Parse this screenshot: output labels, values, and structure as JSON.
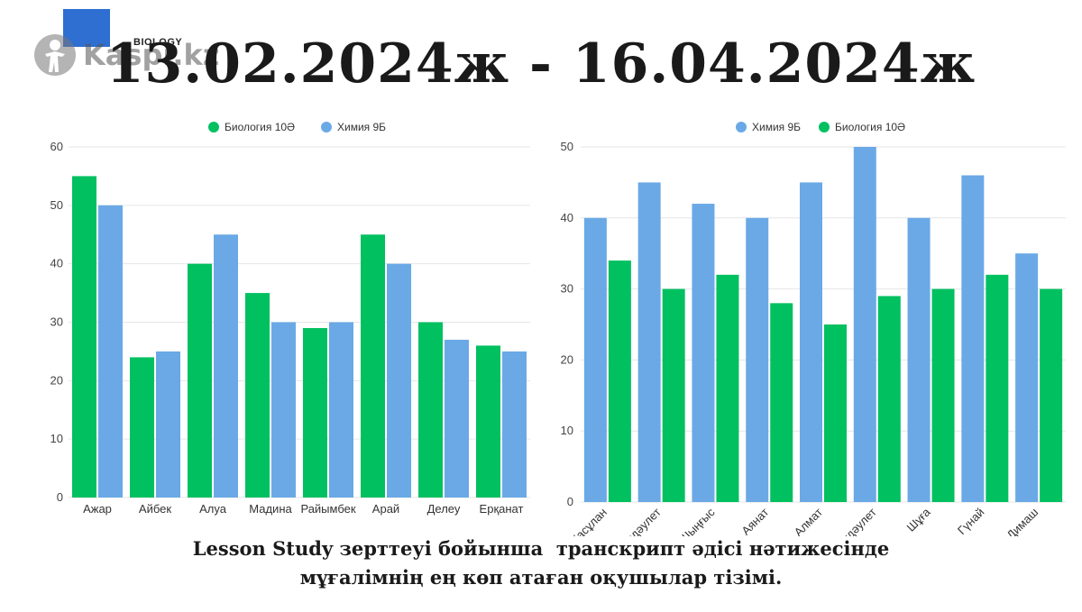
{
  "brand": {
    "subject_tag": "BIOLOGY",
    "watermark": "Kaspi.kz",
    "colors": {
      "logo_blue": "#2f6fd1"
    }
  },
  "headline": "13.02.2024ж - 16.04.2024ж",
  "caption": {
    "line1": "Lesson Study зерттеуі бойынша  транскрипт әдісі нәтижесінде",
    "line2": "мұғалімнің ең көп атаған оқушылар тізімі."
  },
  "chart_data": [
    {
      "type": "bar",
      "legend_position": "top",
      "grid": true,
      "ylim": [
        0,
        60
      ],
      "yticks": [
        0,
        10,
        20,
        30,
        40,
        50,
        60
      ],
      "categories": [
        "Ажар",
        "Айбек",
        "Алуа",
        "Мадина",
        "Райымбек",
        "Арай",
        "Делеу",
        "Ерқанат"
      ],
      "series": [
        {
          "name": "Биология 10Ә",
          "color": "#00c060",
          "values": [
            55,
            24,
            40,
            35,
            29,
            45,
            30,
            26
          ]
        },
        {
          "name": "Химия 9Б",
          "color": "#6aa9e6",
          "values": [
            50,
            25,
            45,
            30,
            30,
            40,
            27,
            25
          ]
        }
      ]
    },
    {
      "type": "bar",
      "legend_position": "top",
      "grid": true,
      "ylim": [
        0,
        50
      ],
      "yticks": [
        0,
        10,
        20,
        30,
        40,
        50
      ],
      "x_label_rotation": -45,
      "categories": [
        "Жасұлан",
        "Нұрдәулет",
        "Шыңғыс",
        "Аянат",
        "Алмат",
        "Бақдәулет",
        "Шұға",
        "Гүнай",
        "Димаш"
      ],
      "series": [
        {
          "name": "Химия 9Б",
          "color": "#6aa9e6",
          "values": [
            40,
            45,
            42,
            40,
            45,
            50,
            40,
            46,
            35
          ]
        },
        {
          "name": "Биология 10Ә",
          "color": "#00c060",
          "values": [
            34,
            30,
            32,
            28,
            25,
            29,
            30,
            32,
            30
          ]
        }
      ]
    }
  ]
}
